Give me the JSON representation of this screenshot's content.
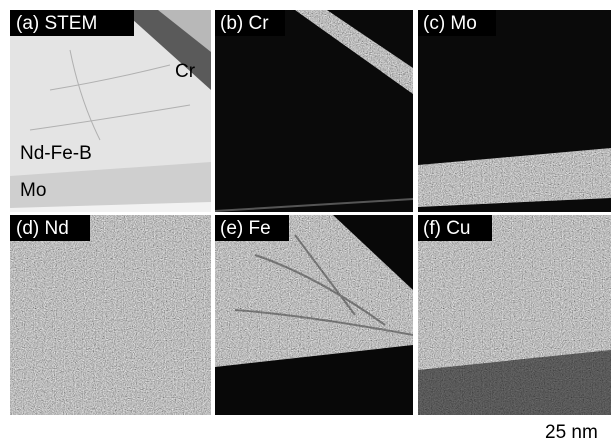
{
  "panels": [
    {
      "label": "(a) STEM",
      "annotations": [
        "Cr",
        "Nd-Fe-B",
        "Mo"
      ]
    },
    {
      "label": "(b) Cr"
    },
    {
      "label": "(c) Mo"
    },
    {
      "label": "(d) Nd"
    },
    {
      "label": "(e) Fe"
    },
    {
      "label": "(f) Cu"
    }
  ],
  "scale_bar": "25 nm"
}
